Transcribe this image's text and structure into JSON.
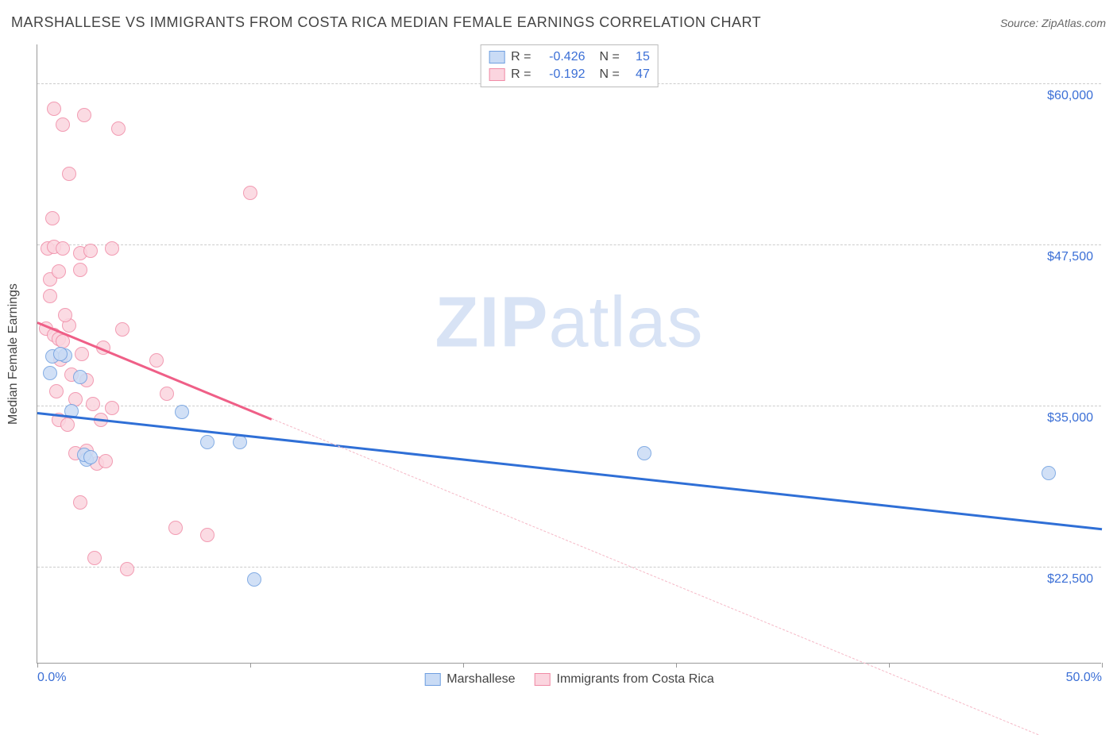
{
  "header": {
    "title": "MARSHALLESE VS IMMIGRANTS FROM COSTA RICA MEDIAN FEMALE EARNINGS CORRELATION CHART",
    "source_label": "Source:",
    "source_value": "ZipAtlas.com"
  },
  "watermark": {
    "zip": "ZIP",
    "atlas": "atlas"
  },
  "chart": {
    "type": "scatter",
    "background_color": "#ffffff",
    "grid_color": "#cccccc",
    "axis_color": "#999999",
    "value_color": "#3b6fd6",
    "text_color": "#444444",
    "yaxis_title": "Median Female Earnings",
    "ylim": [
      15000,
      63000
    ],
    "xlim": [
      0,
      50
    ],
    "ytick_values": [
      22500,
      35000,
      47500,
      60000
    ],
    "ytick_labels": [
      "$22,500",
      "$35,000",
      "$47,500",
      "$60,000"
    ],
    "xtick_values": [
      0,
      10,
      20,
      30,
      40,
      50
    ],
    "xtick_minor": [
      0,
      10,
      20,
      30,
      40,
      50
    ],
    "xtick_labels_show": [
      0,
      50
    ],
    "xtick_labels": {
      "0": "0.0%",
      "50": "50.0%"
    },
    "marker_radius": 9,
    "marker_border_width": 1.5,
    "line_width_solid": 3,
    "line_width_dashed": 1,
    "series": [
      {
        "id": "marshallese",
        "label": "Marshallese",
        "fill": "#c9dbf5",
        "stroke": "#6f9fe0",
        "line_color": "#2f6fd6",
        "r": -0.426,
        "n": 15,
        "trend_solid": {
          "x1": 0,
          "y1": 34500,
          "x2": 50,
          "y2": 25500
        },
        "trend_dash_from": 50,
        "points": [
          [
            0.7,
            38800
          ],
          [
            0.6,
            37500
          ],
          [
            1.3,
            38900
          ],
          [
            1.6,
            34600
          ],
          [
            2.3,
            30800
          ],
          [
            2.2,
            31200
          ],
          [
            2.5,
            31000
          ],
          [
            2.0,
            37200
          ],
          [
            6.8,
            34500
          ],
          [
            8.0,
            32200
          ],
          [
            9.5,
            32200
          ],
          [
            10.2,
            21500
          ],
          [
            28.5,
            31300
          ],
          [
            47.5,
            29800
          ],
          [
            1.1,
            39000
          ]
        ]
      },
      {
        "id": "costa_rica",
        "label": "Immigrants from Costa Rica",
        "fill": "#fbd5df",
        "stroke": "#f08ba6",
        "line_color": "#ef5f87",
        "r": -0.192,
        "n": 47,
        "trend_solid": {
          "x1": 0,
          "y1": 41500,
          "x2": 11,
          "y2": 34000
        },
        "trend_dash_from": 11,
        "trend_dash_to": {
          "x": 47,
          "y": 9500
        },
        "points": [
          [
            0.8,
            58000
          ],
          [
            1.2,
            56800
          ],
          [
            2.2,
            57500
          ],
          [
            3.8,
            56500
          ],
          [
            1.5,
            53000
          ],
          [
            0.7,
            49500
          ],
          [
            0.5,
            47200
          ],
          [
            0.8,
            47300
          ],
          [
            1.2,
            47200
          ],
          [
            2.0,
            46800
          ],
          [
            2.5,
            47000
          ],
          [
            3.5,
            47200
          ],
          [
            0.6,
            44800
          ],
          [
            0.4,
            41000
          ],
          [
            0.8,
            40500
          ],
          [
            1.0,
            40200
          ],
          [
            1.2,
            40000
          ],
          [
            1.5,
            41200
          ],
          [
            2.1,
            39000
          ],
          [
            1.1,
            38600
          ],
          [
            1.6,
            37400
          ],
          [
            2.3,
            37000
          ],
          [
            0.9,
            36100
          ],
          [
            1.8,
            35500
          ],
          [
            2.6,
            35100
          ],
          [
            3.5,
            34800
          ],
          [
            5.6,
            38500
          ],
          [
            6.1,
            35900
          ],
          [
            1.0,
            33900
          ],
          [
            1.8,
            31300
          ],
          [
            2.3,
            31500
          ],
          [
            2.8,
            30500
          ],
          [
            3.2,
            30700
          ],
          [
            1.4,
            33500
          ],
          [
            2.0,
            27500
          ],
          [
            3.0,
            33900
          ],
          [
            2.7,
            23200
          ],
          [
            4.2,
            22300
          ],
          [
            6.5,
            25500
          ],
          [
            8.0,
            25000
          ],
          [
            10.0,
            51500
          ],
          [
            1.3,
            42000
          ],
          [
            0.6,
            43500
          ],
          [
            3.1,
            39500
          ],
          [
            4.0,
            40900
          ],
          [
            2.0,
            45500
          ],
          [
            1.0,
            45400
          ]
        ]
      }
    ],
    "legend_top": {
      "r_label": "R =",
      "n_label": "N ="
    }
  }
}
